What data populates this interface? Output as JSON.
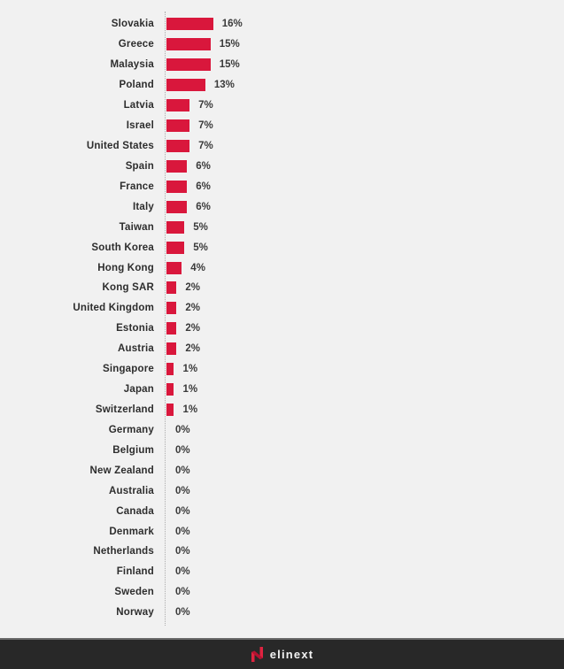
{
  "page": {
    "background": "#f1f1f1"
  },
  "chart_data": {
    "type": "bar",
    "orientation": "horizontal",
    "title": "",
    "xlabel": "",
    "ylabel": "",
    "legend": "none",
    "grid": "off",
    "axis_line_style": "dotted-vertical",
    "bar_color": "#d9173c",
    "categories": [
      "Slovakia",
      "Greece",
      "Malaysia",
      "Poland",
      "Latvia",
      "Israel",
      "United States",
      "Spain",
      "France",
      "Italy",
      "Taiwan",
      "South Korea",
      "Hong Kong",
      "Kong SAR",
      "United Kingdom",
      "Estonia",
      "Austria",
      "Singapore",
      "Japan",
      "Switzerland",
      "Germany",
      "Belgium",
      "New Zealand",
      "Australia",
      "Canada",
      "Denmark",
      "Netherlands",
      "Finland",
      "Sweden",
      "Norway"
    ],
    "values": [
      16,
      15,
      15,
      13,
      7,
      7,
      7,
      6,
      6,
      6,
      5,
      5,
      4,
      2,
      2,
      2,
      2,
      1,
      1,
      1,
      0,
      0,
      0,
      0,
      0,
      0,
      0,
      0,
      0,
      0
    ],
    "value_labels": [
      "16%",
      "15%",
      "15%",
      "13%",
      "7%",
      "7%",
      "7%",
      "6%",
      "6%",
      "6%",
      "5%",
      "5%",
      "4%",
      "2%",
      "2%",
      "2%",
      "2%",
      "1%",
      "1%",
      "1%",
      "0%",
      "0%",
      "0%",
      "0%",
      "0%",
      "0%",
      "0%",
      "0%",
      "0%",
      "0%"
    ],
    "xlim": [
      0,
      16
    ]
  },
  "footer": {
    "brand": "elinext",
    "background": "#282828",
    "logo_color": "#e02340",
    "text_color": "#f2f2f2"
  }
}
